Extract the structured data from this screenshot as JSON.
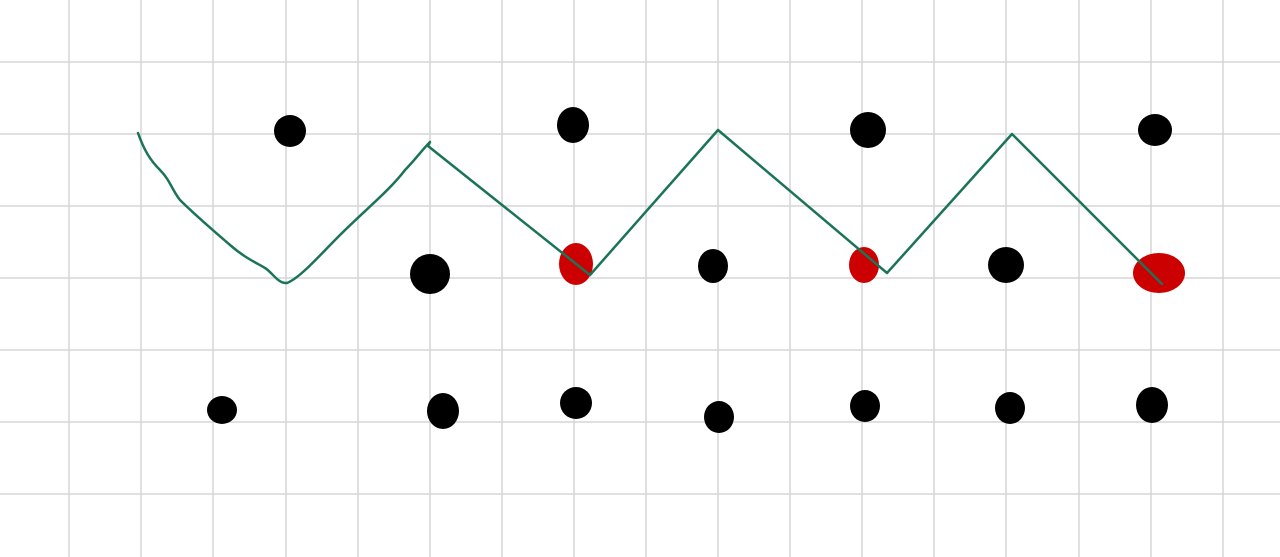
{
  "colors": {
    "background": "#ffffff",
    "grid_line": "#d6d6d6",
    "zigzag_line": "#1b7358",
    "dot_black": "#000000",
    "dot_red": "#cc0000"
  },
  "dots": [
    {
      "row": "top",
      "color": "black"
    },
    {
      "row": "top",
      "color": "black"
    },
    {
      "row": "top",
      "color": "black"
    },
    {
      "row": "top",
      "color": "black"
    },
    {
      "row": "middle",
      "color": "black"
    },
    {
      "row": "middle",
      "color": "red"
    },
    {
      "row": "middle",
      "color": "black"
    },
    {
      "row": "middle",
      "color": "red"
    },
    {
      "row": "middle",
      "color": "black"
    },
    {
      "row": "middle",
      "color": "red"
    },
    {
      "row": "bottom",
      "color": "black"
    },
    {
      "row": "bottom",
      "color": "black"
    },
    {
      "row": "bottom",
      "color": "black"
    },
    {
      "row": "bottom",
      "color": "black"
    },
    {
      "row": "bottom",
      "color": "black"
    },
    {
      "row": "bottom",
      "color": "black"
    },
    {
      "row": "bottom",
      "color": "black"
    }
  ]
}
